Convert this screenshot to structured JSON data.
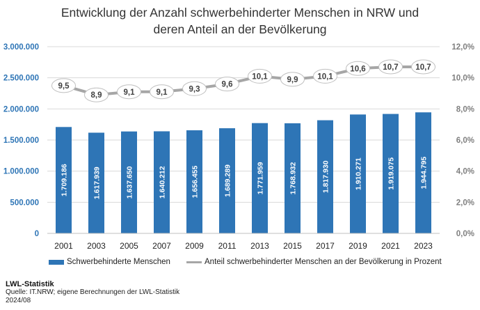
{
  "chart_data": {
    "type": "bar+line",
    "title_line1": "Entwicklung der Anzahl schwerbehinderter Menschen in NRW und",
    "title_line2": "deren Anteil an der Bevölkerung",
    "categories": [
      "2001",
      "2003",
      "2005",
      "2007",
      "2009",
      "2011",
      "2013",
      "2015",
      "2017",
      "2019",
      "2021",
      "2023"
    ],
    "series": [
      {
        "name": "Schwerbehinderte Menschen",
        "type": "bar",
        "axis": "left",
        "color": "#2e75b6",
        "values": [
          1709186,
          1617939,
          1637650,
          1640212,
          1656455,
          1689289,
          1771959,
          1768932,
          1817930,
          1910271,
          1919075,
          1944795
        ],
        "labels": [
          "1.709.186",
          "1.617.939",
          "1.637.650",
          "1.640.212",
          "1.656.455",
          "1.689.289",
          "1.771.959",
          "1.768.932",
          "1.817.930",
          "1.910.271",
          "1.919.075",
          "1.944.795"
        ]
      },
      {
        "name": "Anteil schwerbehinderter Menschen an der Bevölkerung in Prozent",
        "type": "line",
        "axis": "right",
        "color": "#a6a6a6",
        "values": [
          9.5,
          8.9,
          9.1,
          9.1,
          9.3,
          9.6,
          10.1,
          9.9,
          10.1,
          10.6,
          10.7,
          10.7
        ],
        "labels": [
          "9,5",
          "8,9",
          "9,1",
          "9,1",
          "9,3",
          "9,6",
          "10,1",
          "9,9",
          "10,1",
          "10,6",
          "10,7",
          "10,7"
        ]
      }
    ],
    "y_left": {
      "min": 0,
      "max": 3000000,
      "ticks": [
        0,
        500000,
        1000000,
        1500000,
        2000000,
        2500000,
        3000000
      ],
      "tick_labels": [
        "0",
        "500.000",
        "1.000.000",
        "1.500.000",
        "2.000.000",
        "2.500.000",
        "3.000.000"
      ],
      "color": "#2e75b6"
    },
    "y_right": {
      "min": 0,
      "max": 12,
      "ticks": [
        0,
        2,
        4,
        6,
        8,
        10,
        12
      ],
      "tick_labels": [
        "0,0%",
        "2,0%",
        "4,0%",
        "6,0%",
        "8,0%",
        "10,0%",
        "12,0%"
      ],
      "color": "#7f7f7f"
    },
    "grid": true,
    "legend_position": "bottom"
  },
  "footer": {
    "brand": "LWL-Statistik",
    "source": "Quelle: IT.NRW; eigene Berechnungen der LWL-Statistik",
    "date": "2024/08"
  }
}
